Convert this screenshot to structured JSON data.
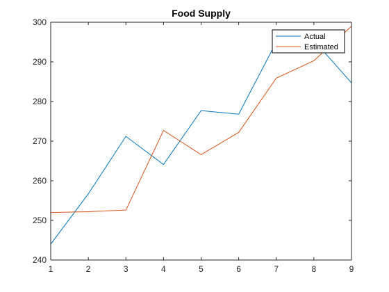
{
  "chart_data": {
    "type": "line",
    "title": "Food Supply",
    "xlabel": "",
    "ylabel": "",
    "x": [
      1,
      2,
      3,
      4,
      5,
      6,
      7,
      8,
      9
    ],
    "xlim": [
      1,
      9
    ],
    "ylim": [
      240,
      300
    ],
    "xticks": [
      1,
      2,
      3,
      4,
      5,
      6,
      7,
      8,
      9
    ],
    "yticks": [
      240,
      250,
      260,
      270,
      280,
      290,
      300
    ],
    "grid": false,
    "legend_position": "top-right",
    "series": [
      {
        "name": "Actual",
        "color": "#0072BD",
        "values": [
          244.0,
          256.7,
          271.2,
          264.1,
          277.7,
          276.8,
          295.0,
          295.4,
          284.7
        ]
      },
      {
        "name": "Estimated",
        "color": "#D95319",
        "values": [
          252.0,
          252.2,
          252.6,
          272.7,
          266.6,
          272.2,
          285.9,
          290.3,
          299.0
        ]
      }
    ]
  }
}
